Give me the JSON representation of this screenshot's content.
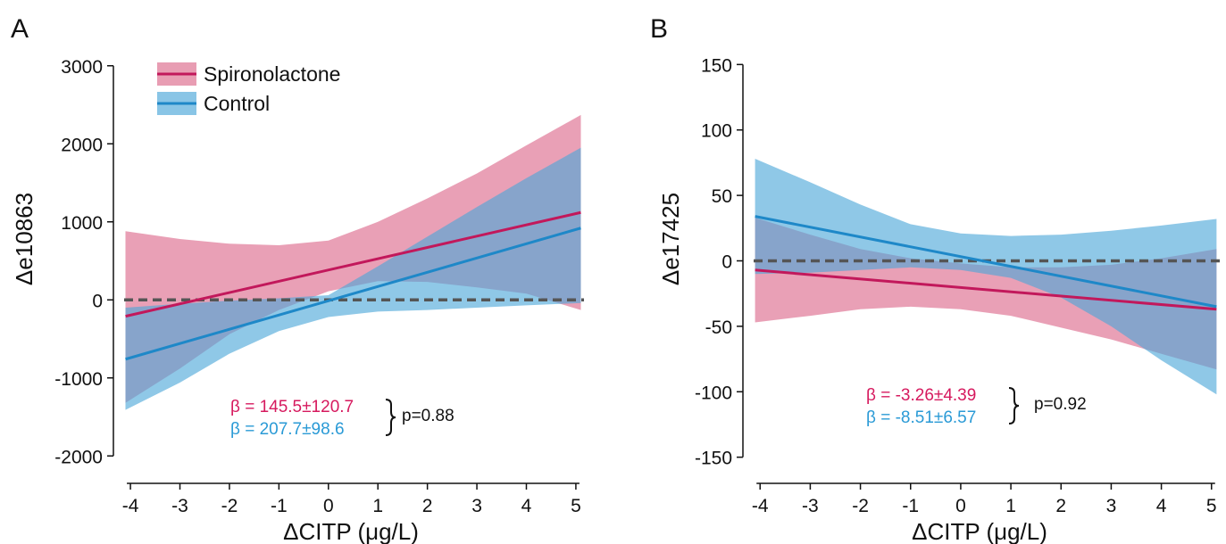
{
  "colors": {
    "spironolactone_line": "#c2185b",
    "spironolactone_band": "#e07c9a",
    "control_line": "#1e88c8",
    "control_band": "#4aa6d8",
    "beta_spiro_text": "#d6195e",
    "beta_control_text": "#2a9ad6",
    "reference_line": "#555555",
    "text": "#111111"
  },
  "legend": {
    "spironolactone": "Spironolactone",
    "control": "Control"
  },
  "chart_data": [
    {
      "panel_label": "A",
      "type": "line",
      "xlabel": "ΔCITP (μg/L)",
      "ylabel": "Δe10863",
      "xlim": [
        -4.2,
        5.2
      ],
      "ylim": [
        -2100,
        3100
      ],
      "xticks": [
        -4,
        -3,
        -2,
        -1,
        0,
        1,
        2,
        3,
        4,
        5
      ],
      "yticks": [
        -2000,
        -1000,
        0,
        1000,
        2000,
        3000
      ],
      "reference_y": 0,
      "legend_position": "top-left",
      "series": [
        {
          "name": "Spironolactone",
          "x": [
            -4.1,
            5.1
          ],
          "y": [
            -210,
            1120
          ],
          "band_x": [
            -4.1,
            -3,
            -2,
            -1,
            0,
            1,
            2,
            3,
            4,
            5.1
          ],
          "band_upper": [
            880,
            780,
            720,
            700,
            760,
            1000,
            1300,
            1620,
            1980,
            2370
          ],
          "band_lower": [
            -1320,
            -880,
            -440,
            -130,
            110,
            240,
            230,
            160,
            80,
            -130
          ]
        },
        {
          "name": "Control",
          "x": [
            -4.1,
            5.1
          ],
          "y": [
            -760,
            920
          ],
          "band_x": [
            -4.1,
            -3,
            -2,
            -1,
            0,
            1,
            2,
            3,
            4,
            5.1
          ],
          "band_upper": [
            -100,
            -50,
            -10,
            20,
            60,
            430,
            810,
            1190,
            1560,
            1950
          ],
          "band_lower": [
            -1410,
            -1060,
            -690,
            -400,
            -220,
            -150,
            -130,
            -100,
            -70,
            -40
          ]
        }
      ],
      "annotations": {
        "beta_spiro": "β = 145.5±120.7",
        "beta_control": "β = 207.7±98.6",
        "p_value": "p=0.88"
      }
    },
    {
      "panel_label": "B",
      "type": "line",
      "xlabel": "ΔCITP (μg/L)",
      "ylabel": "Δe17425",
      "xlim": [
        -4.2,
        5.2
      ],
      "ylim": [
        -155,
        155
      ],
      "xticks": [
        -4,
        -3,
        -2,
        -1,
        0,
        1,
        2,
        3,
        4,
        5
      ],
      "yticks": [
        -150,
        -100,
        -50,
        0,
        50,
        100,
        150
      ],
      "reference_y": 0,
      "series": [
        {
          "name": "Spironolactone",
          "x": [
            -4.1,
            5.1
          ],
          "y": [
            -7,
            -37
          ],
          "band_x": [
            -4.1,
            -3,
            -2,
            -1,
            0,
            1,
            2,
            3,
            4,
            5.1
          ],
          "band_upper": [
            33,
            20,
            9,
            2,
            -2,
            -5,
            -5,
            -3,
            2,
            9
          ],
          "band_lower": [
            -47,
            -42,
            -37,
            -35,
            -37,
            -42,
            -51,
            -60,
            -71,
            -83
          ]
        },
        {
          "name": "Control",
          "x": [
            -4.1,
            5.1
          ],
          "y": [
            34,
            -35
          ],
          "band_x": [
            -4.1,
            -3,
            -2,
            -1,
            0,
            1,
            2,
            3,
            4,
            5.1
          ],
          "band_upper": [
            78,
            60,
            43,
            28,
            21,
            19,
            20,
            23,
            27,
            32
          ],
          "band_lower": [
            -10,
            -9,
            -7,
            -5,
            -7,
            -13,
            -28,
            -50,
            -76,
            -102
          ]
        }
      ],
      "annotations": {
        "beta_spiro": "β = -3.26±4.39",
        "beta_control": "β = -8.51±6.57",
        "p_value": "p=0.92"
      }
    }
  ]
}
